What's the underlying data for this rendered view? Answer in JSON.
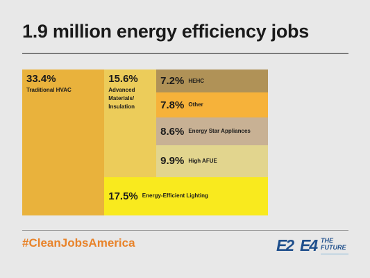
{
  "title": "1.9 million energy efficiency jobs",
  "hashtag": "#CleanJobsAmerica",
  "logos": {
    "e2": "E2",
    "e4": "E4",
    "e4_word1": "THE",
    "e4_word2": "FUTURE"
  },
  "colors": {
    "hashtag": "#e8832a",
    "logo": "#1f4f8c"
  },
  "chart_data": {
    "type": "treemap",
    "title": "1.9 million energy efficiency jobs",
    "values_unit": "percent",
    "segments": [
      {
        "label": "Traditional HVAC",
        "value": 33.4,
        "value_label": "33.4%",
        "color": "#e9b23c"
      },
      {
        "label": "Advanced Materials/ Insulation",
        "value": 15.6,
        "value_label": "15.6%",
        "color": "#eccc5a"
      },
      {
        "label": "HEHC",
        "value": 7.2,
        "value_label": "7.2%",
        "color": "#b09257"
      },
      {
        "label": "Other",
        "value": 7.8,
        "value_label": "7.8%",
        "color": "#f6b23a"
      },
      {
        "label": "Energy Star Appliances",
        "value": 8.6,
        "value_label": "8.6%",
        "color": "#c8b194"
      },
      {
        "label": "High AFUE",
        "value": 9.9,
        "value_label": "9.9%",
        "color": "#e2d58e"
      },
      {
        "label": "Energy-Efficient Lighting",
        "value": 17.5,
        "value_label": "17.5%",
        "color": "#f9ea1e"
      }
    ]
  }
}
